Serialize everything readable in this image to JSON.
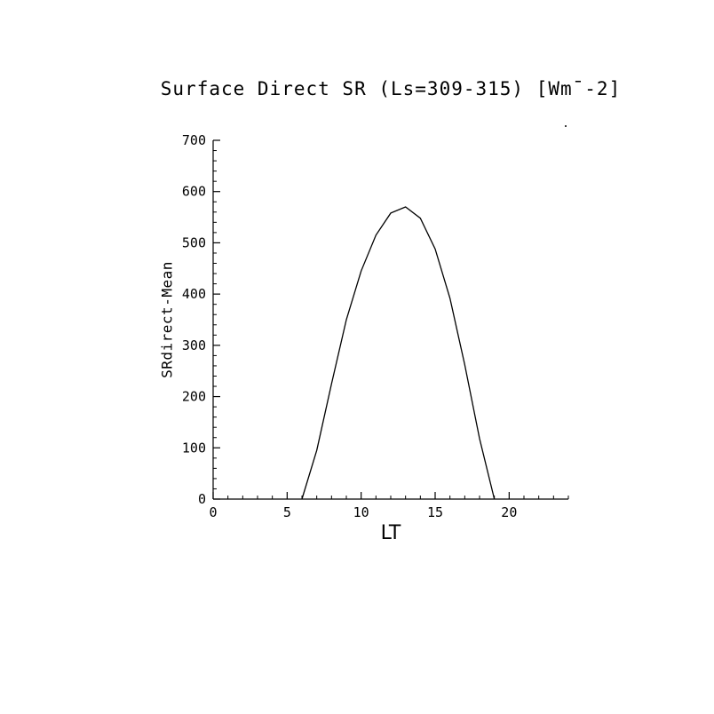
{
  "chart_data": {
    "type": "line",
    "title": "Surface Direct SR (Ls=309-315) [Wm¯-2]",
    "xlabel": "LT",
    "ylabel": "SRdirect-Mean",
    "xlim": [
      0,
      24
    ],
    "ylim": [
      0,
      700
    ],
    "xticks": [
      0,
      5,
      10,
      15,
      20
    ],
    "yticks": [
      0,
      100,
      200,
      300,
      400,
      500,
      600,
      700
    ],
    "x_minor_step": 1,
    "y_minor_step": 20,
    "grid": false,
    "legend": "none",
    "line_color": "#000000",
    "background_color": "#ffffff",
    "x": [
      6,
      7,
      8,
      9,
      10,
      11,
      12,
      13,
      14,
      15,
      16,
      17,
      18,
      19
    ],
    "y": [
      0,
      95,
      225,
      350,
      445,
      515,
      558,
      570,
      548,
      488,
      392,
      262,
      118,
      0
    ]
  }
}
